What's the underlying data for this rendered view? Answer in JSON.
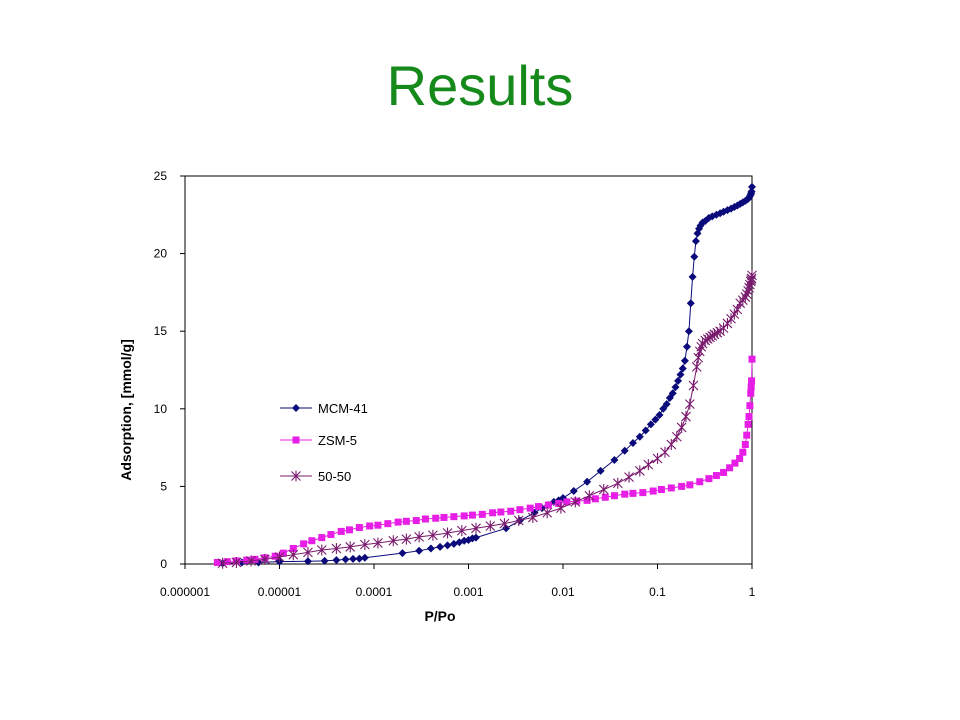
{
  "slide": {
    "title": "Results"
  },
  "chart_data": {
    "type": "scatter",
    "xscale": "log",
    "xlim": [
      1e-06,
      1
    ],
    "ylim": [
      0,
      25
    ],
    "xticks": [
      "0.000001",
      "0.00001",
      "0.0001",
      "0.001",
      "0.01",
      "0.1",
      "1"
    ],
    "yticks": [
      "0",
      "5",
      "10",
      "15",
      "20",
      "25"
    ],
    "xlabel": "P/Po",
    "ylabel": "Adsorption, [mmol/g]",
    "grid": false,
    "legend_position": "left-center",
    "series": [
      {
        "name": "MCM-41",
        "color": "#0a0a7a",
        "marker": "diamond",
        "x": [
          2.5e-06,
          4e-06,
          6e-06,
          1e-05,
          2e-05,
          3e-05,
          4e-05,
          5e-05,
          6e-05,
          7e-05,
          8e-05,
          0.0002,
          0.0003,
          0.0004,
          0.0005,
          0.0006,
          0.0007,
          0.0008,
          0.0009,
          0.001,
          0.0011,
          0.0012,
          0.0025,
          0.0035,
          0.005,
          0.006,
          0.007,
          0.008,
          0.009,
          0.01,
          0.013,
          0.018,
          0.025,
          0.035,
          0.045,
          0.055,
          0.065,
          0.075,
          0.085,
          0.095,
          0.105,
          0.115,
          0.125,
          0.135,
          0.145,
          0.155,
          0.165,
          0.175,
          0.185,
          0.195,
          0.205,
          0.215,
          0.225,
          0.235,
          0.245,
          0.255,
          0.265,
          0.275,
          0.285,
          0.3,
          0.32,
          0.35,
          0.38,
          0.42,
          0.46,
          0.5,
          0.55,
          0.6,
          0.65,
          0.7,
          0.75,
          0.8,
          0.85,
          0.9,
          0.93,
          0.95,
          0.97,
          0.98,
          0.99,
          1.0
        ],
        "y": [
          0.05,
          0.1,
          0.1,
          0.15,
          0.18,
          0.2,
          0.25,
          0.3,
          0.33,
          0.35,
          0.4,
          0.7,
          0.85,
          1.0,
          1.1,
          1.2,
          1.3,
          1.4,
          1.5,
          1.55,
          1.65,
          1.7,
          2.3,
          2.8,
          3.3,
          3.6,
          3.8,
          4.0,
          4.1,
          4.25,
          4.7,
          5.3,
          6.0,
          6.7,
          7.3,
          7.8,
          8.2,
          8.6,
          9.0,
          9.3,
          9.6,
          10.0,
          10.3,
          10.7,
          11.0,
          11.4,
          11.8,
          12.2,
          12.6,
          13.1,
          14.0,
          15.0,
          16.8,
          18.5,
          19.8,
          20.8,
          21.3,
          21.6,
          21.8,
          22.0,
          22.1,
          22.3,
          22.4,
          22.5,
          22.6,
          22.7,
          22.8,
          22.9,
          23.0,
          23.1,
          23.2,
          23.3,
          23.4,
          23.5,
          23.6,
          23.7,
          23.8,
          23.9,
          24.0,
          24.3
        ]
      },
      {
        "name": "ZSM-5",
        "color": "#e61ee6",
        "marker": "square",
        "x": [
          2.2e-06,
          2.8e-06,
          3.5e-06,
          4.5e-06,
          5.5e-06,
          7e-06,
          9e-06,
          1.1e-05,
          1.4e-05,
          1.8e-05,
          2.2e-05,
          2.8e-05,
          3.5e-05,
          4.5e-05,
          5.5e-05,
          7e-05,
          9e-05,
          0.00011,
          0.00014,
          0.00018,
          0.00022,
          0.00028,
          0.00035,
          0.00045,
          0.00055,
          0.0007,
          0.0009,
          0.0011,
          0.0014,
          0.0018,
          0.0022,
          0.0028,
          0.0035,
          0.0045,
          0.0055,
          0.007,
          0.009,
          0.011,
          0.014,
          0.018,
          0.022,
          0.028,
          0.035,
          0.045,
          0.055,
          0.07,
          0.09,
          0.11,
          0.14,
          0.18,
          0.22,
          0.28,
          0.35,
          0.42,
          0.5,
          0.58,
          0.66,
          0.74,
          0.8,
          0.85,
          0.88,
          0.91,
          0.93,
          0.95,
          0.97,
          0.98,
          0.99,
          1.0
        ],
        "y": [
          0.1,
          0.15,
          0.2,
          0.25,
          0.3,
          0.4,
          0.5,
          0.7,
          1.0,
          1.3,
          1.5,
          1.7,
          1.9,
          2.1,
          2.2,
          2.35,
          2.45,
          2.5,
          2.6,
          2.7,
          2.75,
          2.8,
          2.9,
          2.95,
          3.0,
          3.05,
          3.1,
          3.15,
          3.2,
          3.3,
          3.35,
          3.4,
          3.5,
          3.6,
          3.7,
          3.8,
          3.9,
          4.0,
          4.05,
          4.1,
          4.2,
          4.3,
          4.4,
          4.5,
          4.55,
          4.6,
          4.7,
          4.8,
          4.9,
          5.0,
          5.1,
          5.3,
          5.5,
          5.7,
          5.9,
          6.2,
          6.5,
          6.8,
          7.2,
          7.7,
          8.3,
          9.0,
          9.5,
          10.2,
          11.0,
          11.4,
          11.8,
          13.2
        ]
      },
      {
        "name": "50-50",
        "color": "#7a1a6e",
        "marker": "asterisk",
        "x": [
          2.5e-06,
          3.5e-06,
          5e-06,
          7e-06,
          1e-05,
          1.4e-05,
          2e-05,
          2.8e-05,
          4e-05,
          5.6e-05,
          8e-05,
          0.00011,
          0.00016,
          0.00022,
          0.0003,
          0.00042,
          0.0006,
          0.00085,
          0.0012,
          0.0017,
          0.0024,
          0.0034,
          0.0048,
          0.0068,
          0.0095,
          0.0135,
          0.019,
          0.027,
          0.038,
          0.05,
          0.065,
          0.08,
          0.1,
          0.12,
          0.14,
          0.16,
          0.18,
          0.2,
          0.22,
          0.24,
          0.26,
          0.27,
          0.28,
          0.29,
          0.3,
          0.32,
          0.34,
          0.36,
          0.38,
          0.4,
          0.43,
          0.46,
          0.5,
          0.55,
          0.6,
          0.65,
          0.7,
          0.75,
          0.8,
          0.85,
          0.88,
          0.91,
          0.93,
          0.95,
          0.97,
          0.98,
          0.99,
          1.0
        ],
        "y": [
          0.05,
          0.1,
          0.2,
          0.3,
          0.45,
          0.6,
          0.75,
          0.9,
          1.0,
          1.1,
          1.25,
          1.35,
          1.5,
          1.6,
          1.75,
          1.85,
          2.0,
          2.15,
          2.3,
          2.45,
          2.6,
          2.8,
          3.0,
          3.3,
          3.6,
          4.0,
          4.4,
          4.8,
          5.2,
          5.6,
          6.0,
          6.4,
          6.8,
          7.2,
          7.7,
          8.2,
          8.8,
          9.5,
          10.3,
          11.5,
          12.7,
          13.3,
          13.7,
          14.0,
          14.2,
          14.4,
          14.5,
          14.6,
          14.7,
          14.8,
          14.9,
          15.0,
          15.2,
          15.5,
          15.8,
          16.1,
          16.4,
          16.8,
          17.0,
          17.2,
          17.4,
          17.6,
          17.8,
          18.0,
          18.2,
          18.3,
          18.4,
          18.6
        ]
      }
    ]
  }
}
